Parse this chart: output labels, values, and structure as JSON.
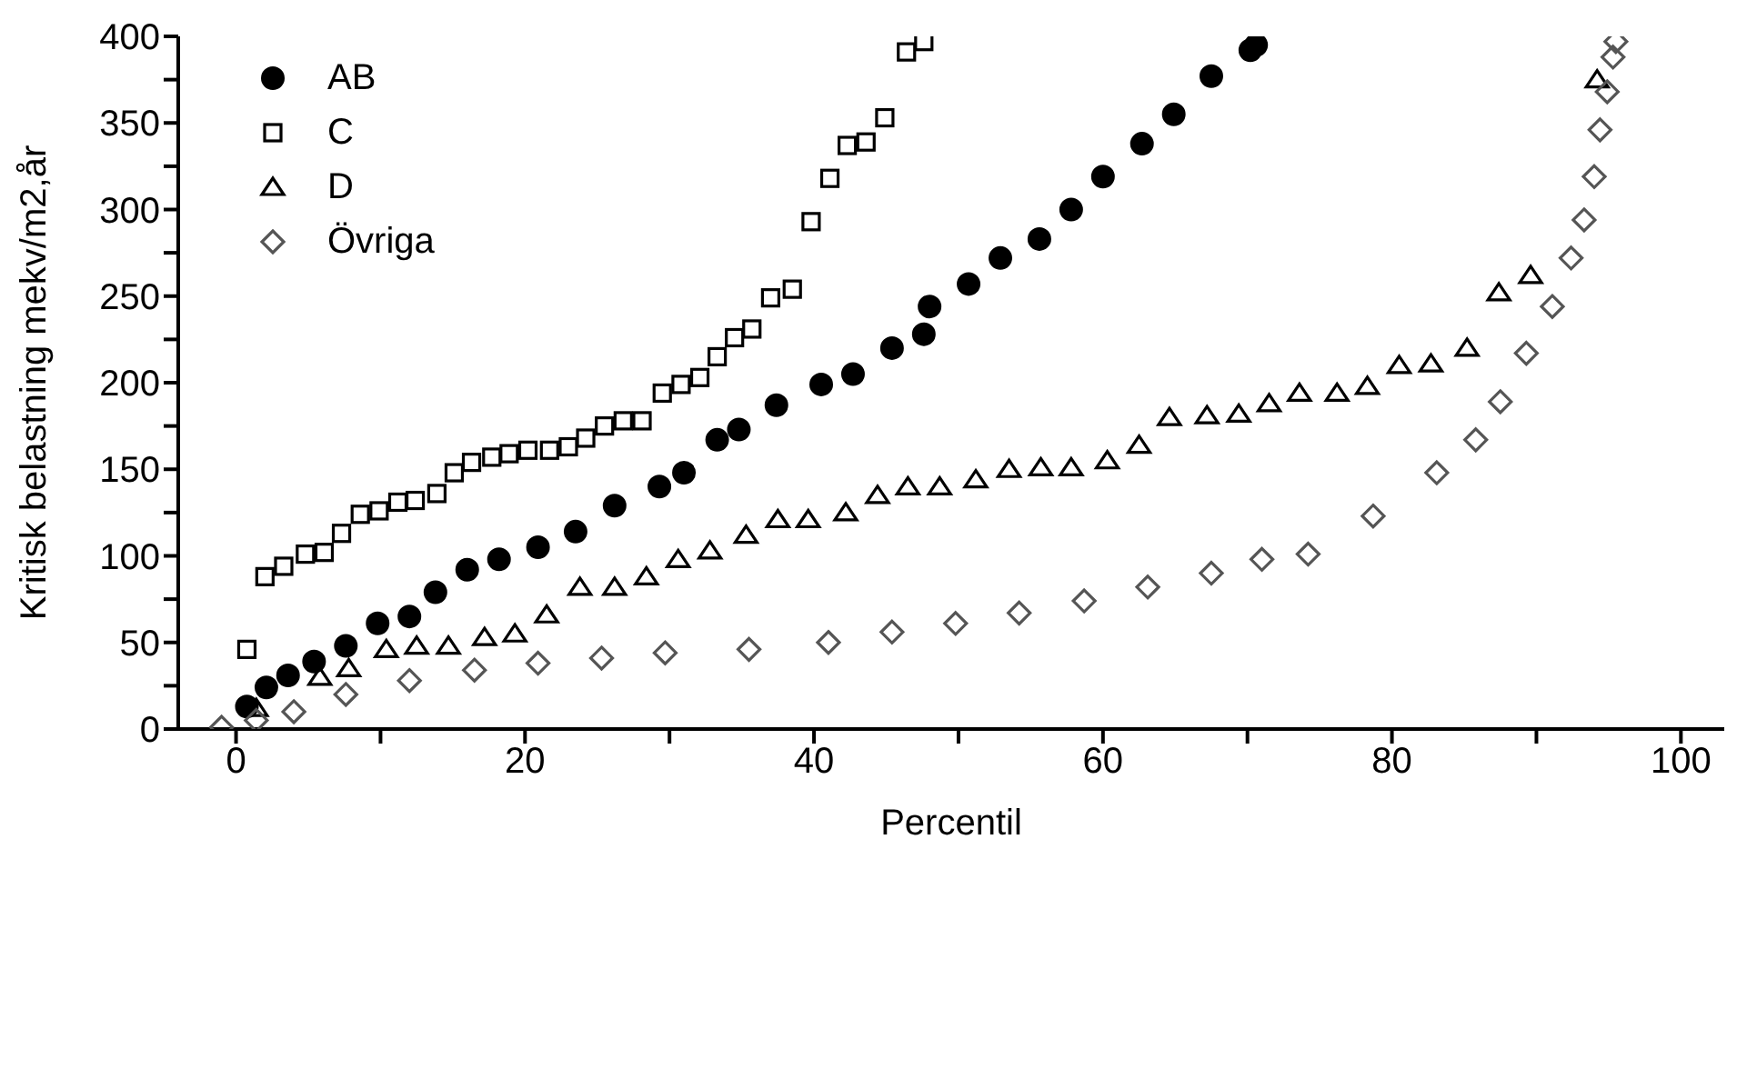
{
  "chart_data": {
    "type": "scatter",
    "xlabel": "Percentil",
    "ylabel": "Kritisk belastning mekv/m2,år",
    "xlim": [
      -4,
      103
    ],
    "ylim": [
      0,
      400
    ],
    "xticks": [
      0,
      {
        "value": 10,
        "label": null
      },
      20,
      {
        "value": 30,
        "label": null
      },
      40,
      {
        "value": 50,
        "label": null
      },
      60,
      {
        "value": 70,
        "label": null
      },
      80,
      {
        "value": 90,
        "label": null
      },
      100
    ],
    "yticks": [
      0,
      {
        "value": 25,
        "label": null
      },
      50,
      {
        "value": 75,
        "label": null
      },
      100,
      {
        "value": 125,
        "label": null
      },
      150,
      {
        "value": 175,
        "label": null
      },
      200,
      {
        "value": 225,
        "label": null
      },
      250,
      {
        "value": 275,
        "label": null
      },
      300,
      {
        "value": 325,
        "label": null
      },
      350,
      {
        "value": 375,
        "label": null
      },
      400
    ],
    "legend": "top left",
    "series": [
      {
        "name": "AB",
        "color": "#000000",
        "marker": "circle",
        "x": [
          0.75,
          2.1,
          3.6,
          5.4,
          7.6,
          9.8,
          12,
          13.8,
          16,
          18.2,
          20.9,
          23.5,
          26.2,
          29.3,
          31,
          33.3,
          34.8,
          37.4,
          40.5,
          42.7,
          45.4,
          47.6,
          48,
          50.7,
          52.9,
          55.6,
          57.8,
          60,
          62.7,
          64.9,
          67.5,
          70.2,
          70.6
        ],
        "values": [
          13,
          24,
          31,
          39,
          48,
          61,
          65,
          79,
          92,
          98,
          105,
          114,
          129,
          140,
          148,
          167,
          173,
          187,
          199,
          205,
          220,
          228,
          244,
          257,
          272,
          283,
          300,
          319,
          338,
          355,
          377,
          392,
          395
        ]
      },
      {
        "name": "C",
        "color": "#000000",
        "marker": "square",
        "x": [
          0.75,
          2,
          3.3,
          4.8,
          6.1,
          7.3,
          8.6,
          9.9,
          11.2,
          12.4,
          13.9,
          15.1,
          16.3,
          17.7,
          18.9,
          20.2,
          21.7,
          23,
          24.2,
          25.5,
          26.8,
          28.1,
          29.5,
          30.8,
          32.1,
          33.3,
          34.5,
          35.7,
          37,
          38.5,
          39.8,
          41.1,
          42.3,
          43.6,
          44.9,
          46.4,
          47.6
        ],
        "values": [
          46,
          88,
          94,
          101,
          102,
          113,
          124,
          126,
          131,
          132,
          136,
          148,
          154,
          157,
          159,
          161,
          161,
          163,
          168,
          175,
          178,
          178,
          194,
          199,
          203,
          215,
          226,
          231,
          249,
          254,
          293,
          318,
          337,
          339,
          353,
          391,
          397
        ]
      },
      {
        "name": "D",
        "color": "#000000",
        "marker": "triangle",
        "x": [
          1.4,
          5.8,
          7.8,
          10.4,
          12.5,
          14.7,
          17.2,
          19.3,
          21.5,
          23.8,
          26.2,
          28.4,
          30.6,
          32.8,
          35.3,
          37.5,
          39.6,
          42.2,
          44.4,
          46.5,
          48.7,
          51.2,
          53.5,
          55.7,
          57.8,
          60.3,
          62.5,
          64.6,
          67.2,
          69.4,
          71.5,
          73.6,
          76.2,
          78.3,
          80.5,
          82.7,
          85.2,
          87.4,
          89.6,
          94.2
        ],
        "values": [
          12,
          30,
          35,
          46,
          48,
          48,
          53,
          55,
          66,
          82,
          82,
          88,
          98,
          103,
          112,
          121,
          121,
          125,
          135,
          140,
          140,
          144,
          150,
          151,
          151,
          155,
          164,
          180,
          181,
          182,
          188,
          194,
          194,
          198,
          210,
          211,
          220,
          252,
          262,
          375
        ]
      },
      {
        "name": "Övriga",
        "color": "#555555",
        "marker": "diamond",
        "x": [
          -1,
          1.4,
          4,
          7.6,
          12,
          16.5,
          20.9,
          25.3,
          29.7,
          35.5,
          41,
          45.4,
          49.8,
          54.2,
          58.7,
          63.1,
          67.5,
          71,
          74.2,
          78.7,
          83.1,
          85.8,
          87.5,
          89.3,
          91.1,
          92.4,
          93.3,
          94,
          94.4,
          94.9,
          95.3,
          95.5
        ],
        "values": [
          1,
          5,
          10,
          20,
          28,
          34,
          38,
          41,
          44,
          46,
          50,
          56,
          61,
          67,
          74,
          82,
          90,
          98,
          101,
          123,
          148,
          167,
          189,
          217,
          244,
          272,
          294,
          319,
          346,
          368,
          388,
          397
        ]
      }
    ]
  }
}
